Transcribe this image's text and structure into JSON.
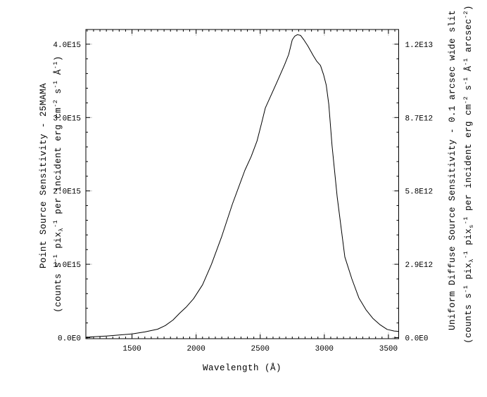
{
  "figure": {
    "background_color": "#ffffff",
    "frame_color": "#000000",
    "curve_color": "#000000",
    "ghost_tick_color": "#c9c9c9"
  },
  "chart_data": {
    "type": "line",
    "title": "",
    "xlabel": "Wavelength (Å)",
    "left_axis": {
      "title_line1": "Point Source Sensitivity - 25MAMA",
      "title_line2_segments": [
        [
          "(counts s",
          "n"
        ],
        [
          "-1",
          "sup"
        ],
        [
          " pix",
          "n"
        ],
        [
          "λ",
          "sub"
        ],
        [
          "-1",
          "sup"
        ],
        [
          " per incident erg cm",
          "n"
        ],
        [
          "-2",
          "sup"
        ],
        [
          " s",
          "n"
        ],
        [
          "-1",
          "sup"
        ],
        [
          " Å",
          "n"
        ],
        [
          "-1",
          "sup"
        ],
        [
          ")",
          "n"
        ]
      ],
      "tick_labels": [
        "0.0E0",
        "1.0E15",
        "2.0E15",
        "3.0E15",
        "4.0E15"
      ],
      "tick_values": [
        0,
        1000000000000000.0,
        2000000000000000.0,
        3000000000000000.0,
        4000000000000000.0
      ],
      "minor_tick_step": 200000000000000.0,
      "ylim": [
        0,
        4200000000000000.0
      ]
    },
    "right_axis": {
      "title_line1": "Uniform Diffuse Source Sensitivity - 0.1 arcsec wide slit",
      "title_line2_segments": [
        [
          "(counts s",
          "n"
        ],
        [
          "-1",
          "sup"
        ],
        [
          " pix",
          "n"
        ],
        [
          "λ",
          "sub"
        ],
        [
          "-1",
          "sup"
        ],
        [
          " pix",
          "n"
        ],
        [
          "s",
          "sub"
        ],
        [
          "-1",
          "sup"
        ],
        [
          " per incident erg cm",
          "n"
        ],
        [
          "-2",
          "sup"
        ],
        [
          " s",
          "n"
        ],
        [
          "-1",
          "sup"
        ],
        [
          " Å",
          "n"
        ],
        [
          "-1",
          "sup"
        ],
        [
          " arcsec",
          "n"
        ],
        [
          "-2",
          "sup"
        ],
        [
          ")",
          "n"
        ]
      ],
      "tick_labels": [
        "0.0E0",
        "2.9E12",
        "5.8E12",
        "8.7E12",
        "1.2E13"
      ],
      "ylim_note": "right scale = left scale × 2.9e-3"
    },
    "x_axis": {
      "tick_labels": [
        "1500",
        "2000",
        "2500",
        "3000",
        "3500"
      ],
      "tick_values": [
        1500,
        2000,
        2500,
        3000,
        3500
      ],
      "minor_tick_step": 50,
      "xlim": [
        1140,
        3580
      ]
    },
    "grid": "off",
    "legend": "none",
    "series": [
      {
        "name": "25MAMA point-source sensitivity",
        "x": [
          1140,
          1200,
          1300,
          1400,
          1500,
          1600,
          1700,
          1760,
          1820,
          1870,
          1925,
          1980,
          2050,
          2120,
          2200,
          2283,
          2380,
          2430,
          2475,
          2510,
          2540,
          2630,
          2690,
          2722,
          2750,
          2770,
          2790,
          2815,
          2840,
          2870,
          2915,
          2940,
          2970,
          2995,
          3015,
          3035,
          3060,
          3100,
          3160,
          3215,
          3270,
          3325,
          3380,
          3435,
          3490,
          3545,
          3580
        ],
        "y": [
          4000000000000.0,
          12000000000000.0,
          22000000000000.0,
          35000000000000.0,
          50000000000000.0,
          78000000000000.0,
          115000000000000.0,
          165000000000000.0,
          240000000000000.0,
          330000000000000.0,
          420000000000000.0,
          530000000000000.0,
          720000000000000.0,
          1000000000000000.0,
          1380000000000000.0,
          1820000000000000.0,
          2280000000000000.0,
          2470000000000000.0,
          2680000000000000.0,
          2920000000000000.0,
          3130000000000000.0,
          3480000000000000.0,
          3720000000000000.0,
          3860000000000000.0,
          4060000000000000.0,
          4110000000000000.0,
          4130000000000000.0,
          4120000000000000.0,
          4060000000000000.0,
          3980000000000000.0,
          3840000000000000.0,
          3770000000000000.0,
          3710000000000000.0,
          3580000000000000.0,
          3440000000000000.0,
          3180000000000000.0,
          2620000000000000.0,
          1920000000000000.0,
          1100000000000000.0,
          800000000000000.0,
          540000000000000.0,
          380000000000000.0,
          260000000000000.0,
          175000000000000.0,
          112000000000000.0,
          90000000000000.0,
          85000000000000.0
        ]
      }
    ]
  }
}
